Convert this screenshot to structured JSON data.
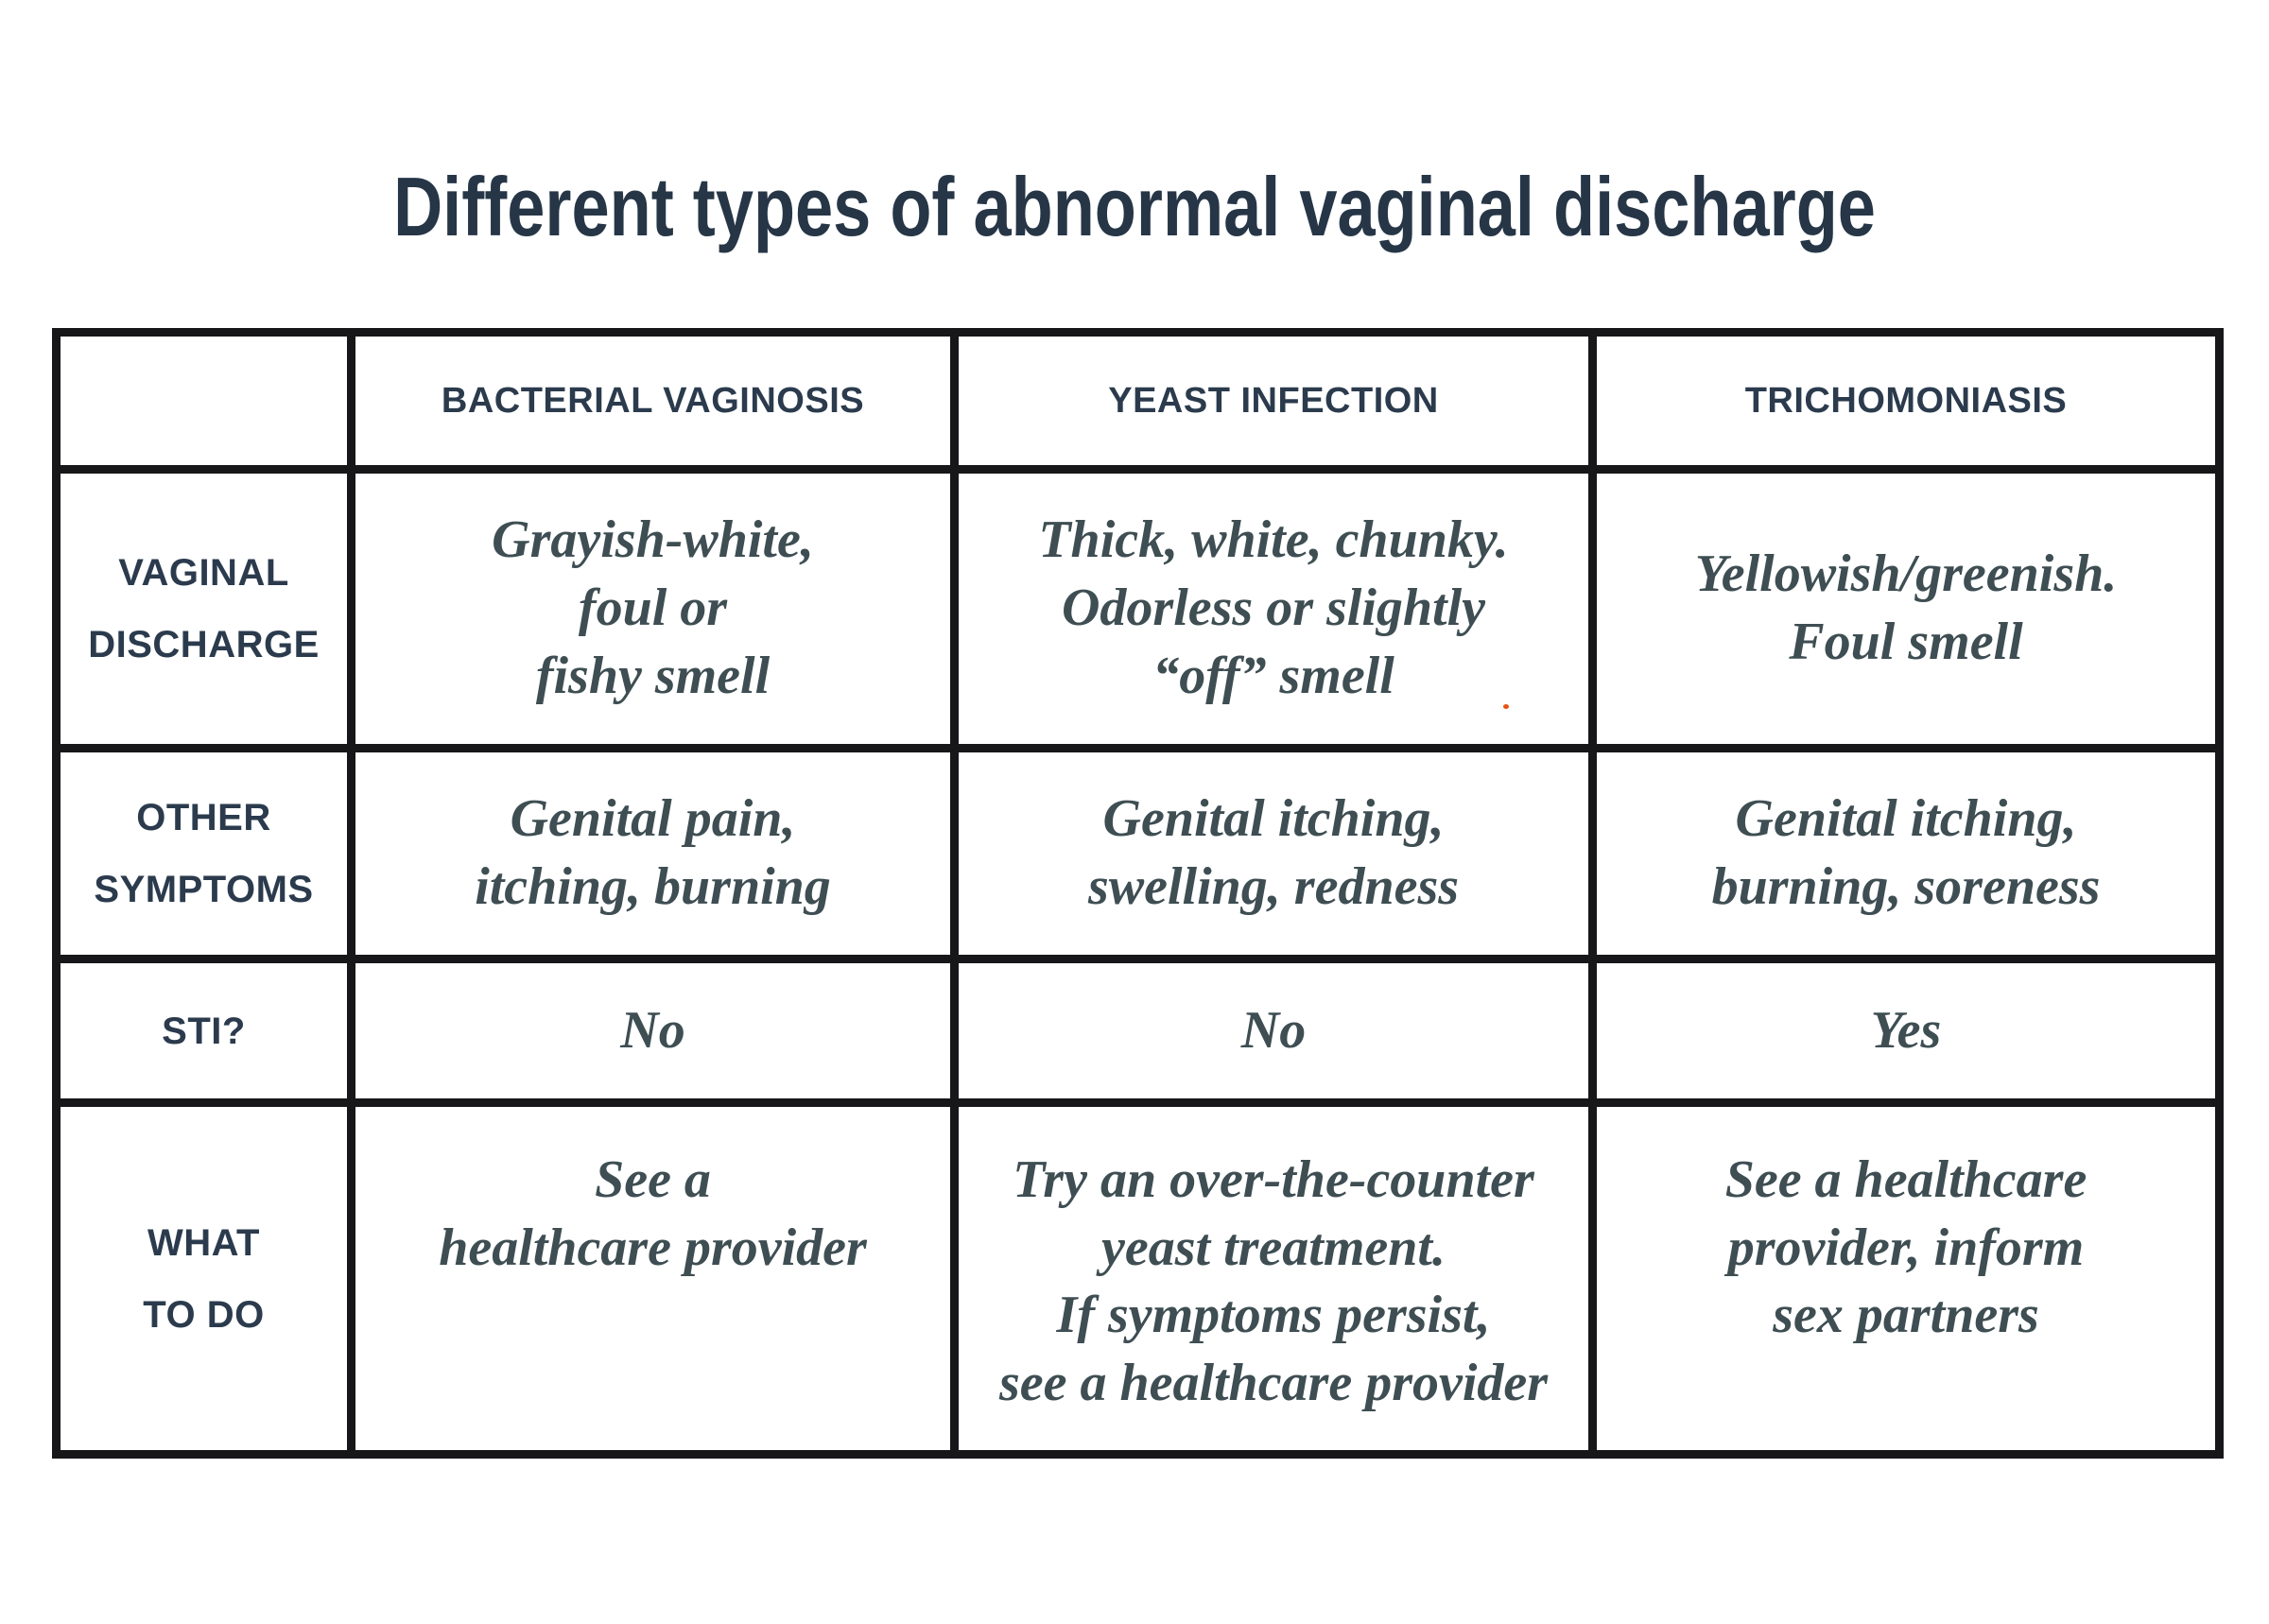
{
  "page": {
    "title": "Different types of abnormal vaginal discharge"
  },
  "colors": {
    "heading_navy": "#2b3b4d",
    "cell_slate": "#3e4e53",
    "table_border": "#17171a",
    "background": "#ffffff",
    "stray_dot_orange": "#e8520f"
  },
  "table": {
    "columns": [
      "BACTERIAL VAGINOSIS",
      "YEAST INFECTION",
      "TRICHOMONIASIS"
    ],
    "rows": [
      {
        "label": "VAGINAL\nDISCHARGE",
        "cells": [
          "Grayish-white,\nfoul or\nfishy smell",
          "Thick, white, chunky.\nOdorless or slightly\n“off” smell",
          "Yellowish/greenish.\nFoul smell"
        ]
      },
      {
        "label": "OTHER\nSYMPTOMS",
        "cells": [
          "Genital pain,\nitching, burning",
          "Genital itching,\nswelling, redness",
          "Genital itching,\nburning, soreness"
        ]
      },
      {
        "label": "STI?",
        "cells": [
          "No",
          "No",
          "Yes"
        ]
      },
      {
        "label": "WHAT\nTO DO",
        "cells": [
          "See a\nhealthcare provider",
          "Try an over-the-counter\nyeast treatment.\nIf symptoms persist,\nsee a healthcare provider",
          "See a healthcare\nprovider, inform\nsex partners"
        ]
      }
    ]
  }
}
